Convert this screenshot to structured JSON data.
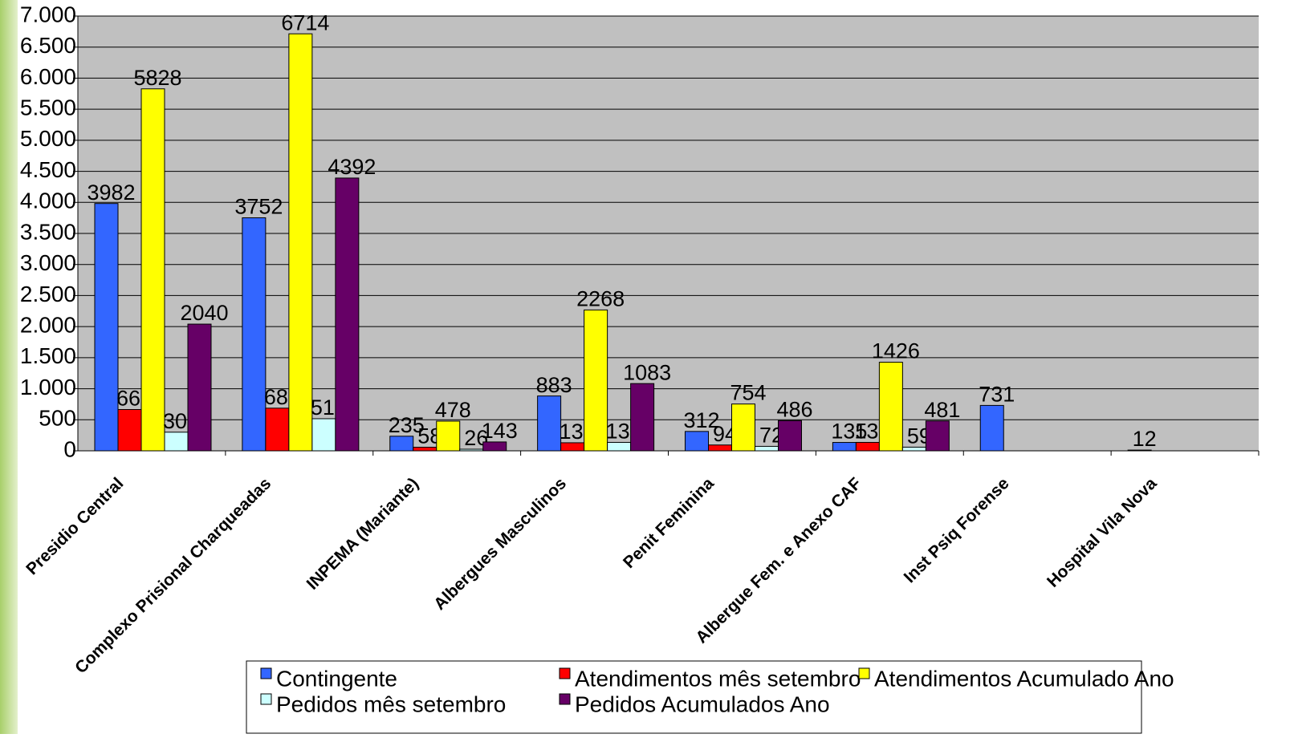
{
  "chart_data": {
    "type": "bar",
    "categories": [
      "Presidio Central",
      "Complexo Prisional Charqueadas",
      "INPEMA (Mariante)",
      "Albergues Masculinos",
      "Penit Feminina",
      "Albergue Fem. e Anexo CAF",
      "Inst Psiq Forense",
      "Hospital Vila Nova"
    ],
    "series": [
      {
        "name": "Contingente",
        "color": "#3366ff",
        "values": [
          3982,
          3752,
          235,
          883,
          312,
          135,
          731,
          12
        ]
      },
      {
        "name": "Atendimentos mês setembro",
        "color": "#ff0000",
        "values": [
          665,
          687,
          58,
          130,
          94,
          136,
          null,
          null
        ]
      },
      {
        "name": "Atendimentos Acumulado Ano",
        "color": "#ffff00",
        "values": [
          5828,
          6714,
          478,
          2268,
          754,
          1426,
          null,
          null
        ]
      },
      {
        "name": "Pedidos mês setembro",
        "color": "#ccffff",
        "values": [
          300,
          517,
          26,
          136,
          72,
          59,
          null,
          null
        ]
      },
      {
        "name": "Pedidos Acumulados Ano",
        "color": "#660066",
        "values": [
          2040,
          4392,
          143,
          1083,
          486,
          481,
          null,
          null
        ]
      }
    ],
    "ylim": [
      0,
      7000
    ],
    "yticks": [
      0,
      500,
      {
        "value": 1000,
        "label": "1.000"
      },
      {
        "value": 1500,
        "label": "1.500"
      },
      {
        "value": 2000,
        "label": "2.000"
      },
      {
        "value": 2500,
        "label": "2.500"
      },
      {
        "value": 3000,
        "label": "3.000"
      },
      {
        "value": 3500,
        "label": "3.500"
      },
      {
        "value": 4000,
        "label": "4.000"
      },
      {
        "value": 4500,
        "label": "4.500"
      },
      {
        "value": 5000,
        "label": "5.000"
      },
      {
        "value": 5500,
        "label": "5.500"
      },
      {
        "value": 6000,
        "label": "6.000"
      },
      {
        "value": 6500,
        "label": "6.500"
      },
      {
        "value": 7000,
        "label": "7.000"
      }
    ],
    "grid": true
  }
}
